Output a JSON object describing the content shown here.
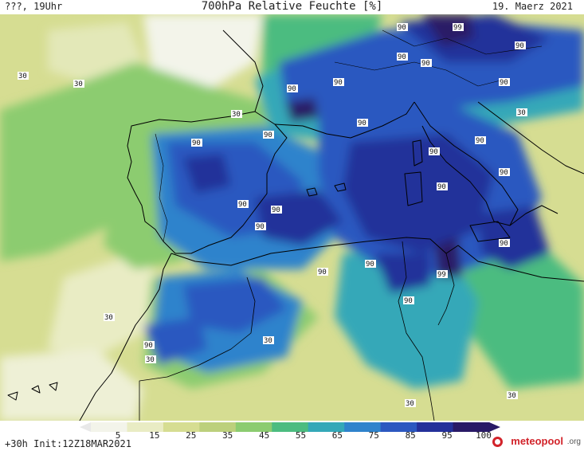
{
  "header": {
    "left": "???, 19Uhr",
    "title": "700hPa Relative Feuchte [%]",
    "date": "19. Maerz 2021"
  },
  "footer": {
    "run_info": "+30h Init:12Z18MAR2021",
    "brand": "meteopool",
    "brand_suffix": ".org"
  },
  "legend": {
    "ticks": [
      "5",
      "15",
      "25",
      "35",
      "45",
      "55",
      "65",
      "75",
      "85",
      "95",
      "100"
    ],
    "colors": [
      "#f3f4ea",
      "#e9ecc4",
      "#d6dd92",
      "#bcd07c",
      "#8ccc70",
      "#4cbc80",
      "#34a8b8",
      "#2f83cc",
      "#2c58c0",
      "#24309a",
      "#291a66"
    ]
  },
  "map": {
    "contour_labels": [
      "30",
      "30",
      "30",
      "30",
      "30",
      "30",
      "30",
      "30",
      "30",
      "90",
      "90",
      "90",
      "90",
      "90",
      "90",
      "90",
      "90",
      "90",
      "90",
      "90",
      "90",
      "90",
      "90",
      "90",
      "90",
      "90",
      "90",
      "90",
      "90",
      "90",
      "90",
      "99",
      "99"
    ]
  }
}
